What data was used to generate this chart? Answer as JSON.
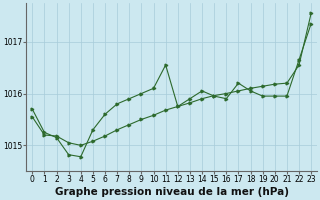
{
  "title": "Graphe pression niveau de la mer (hPa)",
  "x_values": [
    0,
    1,
    2,
    3,
    4,
    5,
    6,
    7,
    8,
    9,
    10,
    11,
    12,
    13,
    14,
    15,
    16,
    17,
    18,
    19,
    20,
    21,
    22,
    23
  ],
  "line1": [
    1015.7,
    1015.25,
    1015.15,
    1014.82,
    1014.78,
    1015.3,
    1015.6,
    1015.8,
    1015.9,
    1016.0,
    1016.1,
    1016.55,
    1015.75,
    1015.9,
    1016.05,
    1015.95,
    1015.9,
    1016.2,
    1016.05,
    1015.95,
    1015.95,
    1015.95,
    1016.65,
    1017.35
  ],
  "line2": [
    1015.55,
    1015.2,
    1015.18,
    1015.05,
    1015.0,
    1015.08,
    1015.18,
    1015.3,
    1015.4,
    1015.5,
    1015.58,
    1015.68,
    1015.75,
    1015.82,
    1015.9,
    1015.96,
    1016.0,
    1016.05,
    1016.1,
    1016.14,
    1016.18,
    1016.2,
    1016.55,
    1017.55
  ],
  "line_color": "#2d6a2d",
  "bg_color": "#cce8f0",
  "grid_color": "#a8ccda",
  "yticks": [
    1015,
    1016,
    1017
  ],
  "ylim": [
    1014.5,
    1017.75
  ],
  "xlim": [
    -0.5,
    23.5
  ],
  "tick_fontsize": 5.5,
  "title_fontsize": 7.5
}
